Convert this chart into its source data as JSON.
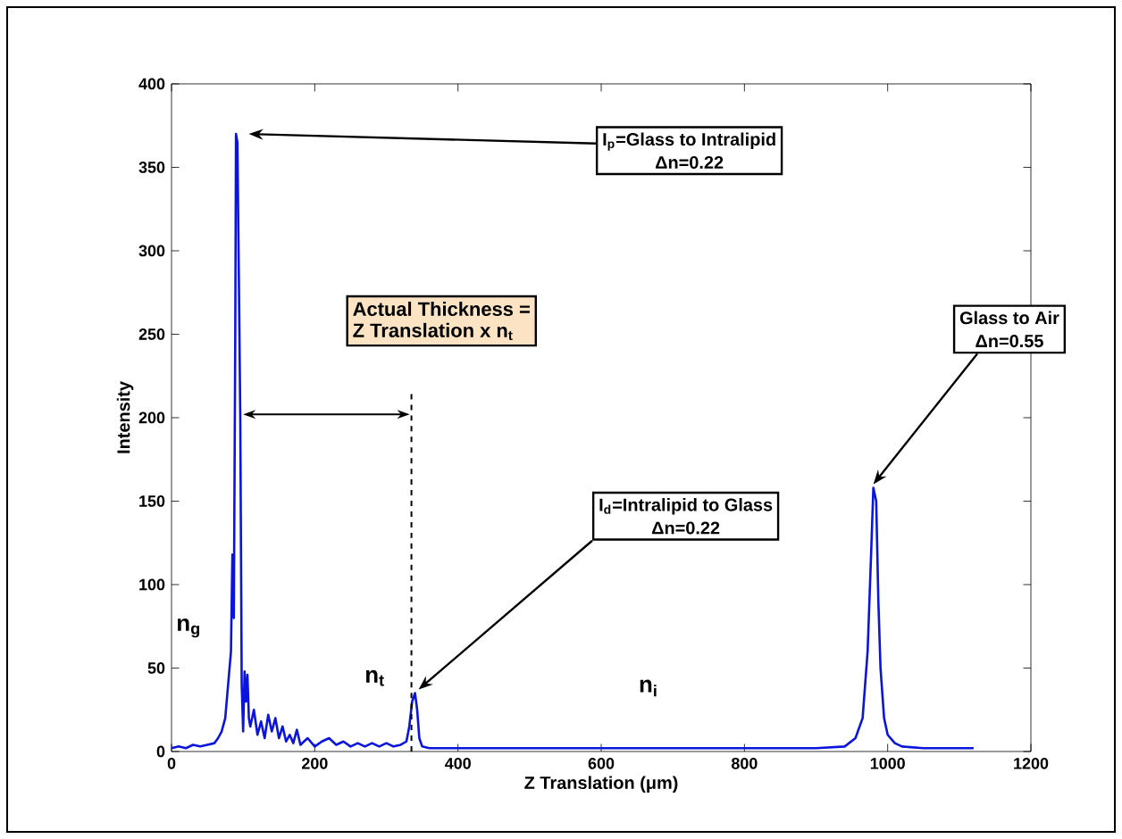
{
  "chart_data": {
    "type": "line",
    "xlabel": "Z Translation (μm)",
    "ylabel": "Intensity",
    "xlim": [
      0,
      1200
    ],
    "ylim": [
      0,
      400
    ],
    "xticks": [
      0,
      200,
      400,
      600,
      800,
      1000,
      1200
    ],
    "yticks": [
      0,
      50,
      100,
      150,
      200,
      250,
      300,
      350,
      400
    ],
    "grid": false,
    "series": [
      {
        "color": "#0a14dc",
        "x": [
          0,
          10,
          20,
          30,
          40,
          50,
          60,
          65,
          70,
          75,
          80,
          83,
          85,
          87,
          89,
          90,
          92,
          94,
          96,
          97,
          98,
          100,
          102,
          104,
          106,
          108,
          110,
          115,
          120,
          125,
          130,
          135,
          140,
          145,
          150,
          155,
          160,
          165,
          170,
          175,
          180,
          190,
          200,
          210,
          220,
          230,
          240,
          250,
          260,
          270,
          280,
          290,
          300,
          310,
          320,
          328,
          332,
          336,
          340,
          343,
          346,
          350,
          360,
          400,
          500,
          600,
          700,
          800,
          900,
          940,
          955,
          965,
          972,
          977,
          980,
          984,
          987,
          990,
          995,
          1000,
          1010,
          1020,
          1050,
          1100,
          1120
        ],
        "values": [
          2,
          3,
          2,
          4,
          3,
          4,
          5,
          8,
          12,
          20,
          45,
          60,
          118,
          80,
          250,
          370,
          365,
          285,
          200,
          120,
          40,
          12,
          48,
          30,
          46,
          20,
          15,
          25,
          10,
          18,
          8,
          22,
          12,
          20,
          8,
          15,
          6,
          10,
          5,
          13,
          4,
          8,
          3,
          6,
          8,
          4,
          6,
          3,
          5,
          3,
          5,
          3,
          5,
          3,
          4,
          6,
          15,
          30,
          35,
          25,
          8,
          3,
          2,
          2,
          2,
          2,
          2,
          2,
          2,
          3,
          8,
          20,
          60,
          120,
          158,
          150,
          90,
          50,
          20,
          10,
          5,
          3,
          2,
          2,
          2
        ]
      }
    ],
    "ref_lines": [
      {
        "axis": "x",
        "value": 335,
        "line_style": "dashed",
        "color": "#000000"
      }
    ],
    "annotations": [
      "I$_{p}$=Glass to Intralipid",
      "Δn=0.22",
      "I$_{d}$=Intralipid to Glass",
      "Δn=0.22",
      "Glass to Air",
      "Δn=0.55",
      "Actual Thickness =",
      "Z Translation x n$_{t}$",
      "n$_{g}$",
      "n$_{t}$",
      "n$_{i}$"
    ]
  }
}
